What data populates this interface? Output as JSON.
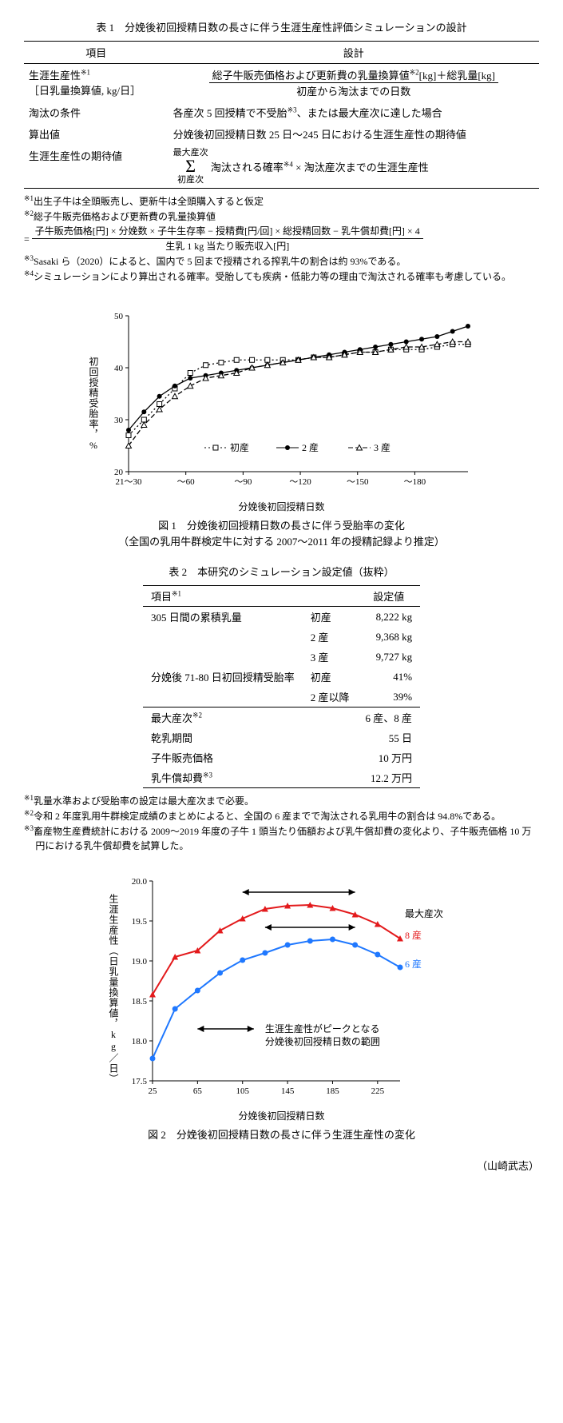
{
  "table1": {
    "title": "表 1　分娩後初回授精日数の長さに伴う生涯生産性評価シミュレーションの設計",
    "header": {
      "col1": "項目",
      "col2": "設計"
    },
    "rows": [
      {
        "item": "生涯生産性",
        "item_sup": "※1",
        "item_sub": "［日乳量換算値, kg/日］",
        "frac_num_a": "総子牛販売価格および更新費の乳量換算値",
        "frac_num_sup": "※2",
        "frac_num_b": "[kg]＋総乳量[kg]",
        "frac_den": "初産から淘汰までの日数"
      },
      {
        "item": "淘汰の条件",
        "design": "各産次 5 回授精で不受胎※3、または最大産次に達した場合",
        "design_text_a": "各産次 5 回授精で不受胎",
        "design_sup": "※3",
        "design_text_b": "、または最大産次に達した場合"
      },
      {
        "item": "算出値",
        "design": "分娩後初回授精日数 25 日～245 日における生涯生産性の期待値"
      },
      {
        "item": "生涯生産性の期待値",
        "sigma_top": "最大産次",
        "sigma_bot": "初産次",
        "sigma_right_a": "淘汰される確率",
        "sigma_sup": "※4",
        "sigma_right_b": " × 淘汰産次までの生涯生産性"
      }
    ],
    "footnotes": [
      {
        "mark": "※1",
        "text": "出生子牛は全頭販売し、更新牛は全頭購入すると仮定"
      },
      {
        "mark": "※2",
        "text": "総子牛販売価格および更新費の乳量換算値"
      },
      {
        "eq_num": "子牛販売価格[円] × 分娩数 × 子牛生存率 − 授精費[円/回] × 総授精回数 − 乳牛償却費[円] × 4",
        "eq_den": "生乳 1 kg 当たり販売収入[円]"
      },
      {
        "mark": "※3",
        "text": "Sasaki ら（2020）によると、国内で 5 回まで授精される搾乳牛の割合は約 93%である。"
      },
      {
        "mark": "※4",
        "text": "シミュレーションにより算出される確率。受胎しても疾病・低能力等の理由で淘汰される確率も考慮している。"
      }
    ]
  },
  "figure1": {
    "caption_line1": "図 1　分娩後初回授精日数の長さに伴う受胎率の変化",
    "caption_line2": "（全国の乳用牛群検定牛に対する 2007～2011 年の授精記録より推定）",
    "ylabel": "初回授精受胎率，%",
    "xlabel": "分娩後初回授精日数",
    "ylim": [
      20,
      50
    ],
    "ytick_step": 10,
    "xticks": [
      "21～30",
      "～60",
      "～90",
      "～120",
      "～150",
      "～180"
    ],
    "xpix": [
      40,
      110,
      180,
      250,
      320,
      390,
      455
    ],
    "legend": [
      {
        "label": "初産",
        "style": "open-square-dotted"
      },
      {
        "label": "2 産",
        "style": "filled-circle-solid"
      },
      {
        "label": "3 産",
        "style": "open-triangle-dash"
      }
    ],
    "series": {
      "parity1": [
        27,
        30,
        33,
        36,
        39,
        40.5,
        41,
        41.5,
        41.5,
        41.5,
        41.5,
        41.5,
        42,
        42,
        42.5,
        43,
        43,
        43.5,
        43.5,
        43.5,
        44,
        44.5,
        44.5
      ],
      "parity2": [
        28,
        31.5,
        34.5,
        36.5,
        38,
        38.5,
        39,
        39.5,
        40,
        40.5,
        41,
        41.5,
        42,
        42.5,
        43,
        43.5,
        44,
        44.5,
        45,
        45.5,
        46,
        47,
        48
      ],
      "parity3": [
        25,
        29,
        32,
        34.5,
        36.5,
        38,
        38.5,
        39,
        40,
        40.5,
        41,
        41.5,
        42,
        42,
        42.5,
        43,
        43,
        43.5,
        44,
        44,
        44.5,
        45,
        45
      ]
    },
    "colors": {
      "marker": "#000000",
      "axis": "#000000",
      "grid": "none",
      "background": "#ffffff"
    },
    "font_size": 12
  },
  "table2": {
    "title": "表 2　本研究のシミュレーション設定値（抜粋）",
    "header": {
      "c1": "項目",
      "c1_sup": "※1",
      "c3": "設定値"
    },
    "rows": [
      {
        "item": "305 日間の累積乳量",
        "mid": "初産",
        "val": "8,222 kg"
      },
      {
        "item": "",
        "mid": "2 産",
        "val": "9,368 kg"
      },
      {
        "item": "",
        "mid": "3 産",
        "val": "9,727 kg"
      },
      {
        "item": "分娩後 71-80 日初回授精受胎率",
        "mid": "初産",
        "val": "41%"
      },
      {
        "item": "",
        "mid": "2 産以降",
        "val": "39%"
      }
    ],
    "rows2": [
      {
        "item": "最大産次",
        "item_sup": "※2",
        "val": "6 産、8 産"
      },
      {
        "item": "乾乳期間",
        "val": "55 日"
      },
      {
        "item": "子牛販売価格",
        "val": "10 万円"
      },
      {
        "item": "乳牛償却費",
        "item_sup": "※3",
        "val": "12.2 万円"
      }
    ],
    "footnotes": [
      {
        "mark": "※1",
        "text": "乳量水準および受胎率の設定は最大産次まで必要。"
      },
      {
        "mark": "※2",
        "text": "令和 2 年度乳用牛群検定成績のまとめによると、全国の 6 産までで淘汰される乳用牛の割合は 94.8%である。"
      },
      {
        "mark": "※3",
        "text": "畜産物生産費統計における 2009～2019 年度の子牛 1 頭当たり価額および乳牛償却費の変化より、子牛販売価格 10 万円における乳牛償却費を試算した。"
      }
    ]
  },
  "figure2": {
    "caption": "図 2　分娩後初回授精日数の長さに伴う生涯生産性の変化",
    "ylabel": "生涯生産性（日乳量換算値，kg／日）",
    "xlabel": "分娩後初回授精日数",
    "ylim": [
      17.5,
      20.0
    ],
    "ytick_step": 0.5,
    "xlim": [
      25,
      245
    ],
    "xticks": [
      25,
      65,
      105,
      145,
      185,
      225
    ],
    "legend_title": "最大産次",
    "legend": [
      {
        "label": "8 産",
        "color": "#e31a1c"
      },
      {
        "label": "6 産",
        "color": "#1f78ff"
      }
    ],
    "series": {
      "max8": {
        "x": [
          25,
          45,
          65,
          85,
          105,
          125,
          145,
          165,
          185,
          205,
          225,
          245
        ],
        "y": [
          18.58,
          19.05,
          19.13,
          19.38,
          19.53,
          19.65,
          19.69,
          19.7,
          19.66,
          19.58,
          19.46,
          19.28
        ],
        "color": "#e31a1c",
        "marker": "triangle"
      },
      "max6": {
        "x": [
          25,
          45,
          65,
          85,
          105,
          125,
          145,
          165,
          185,
          205,
          225,
          245
        ],
        "y": [
          17.78,
          18.4,
          18.63,
          18.85,
          19.01,
          19.1,
          19.2,
          19.25,
          19.27,
          19.2,
          19.08,
          18.92
        ],
        "color": "#1f78ff",
        "marker": "circle"
      }
    },
    "annotation": {
      "arrow_label_line1": "生涯生産性がピークとなる",
      "arrow_label_line2": "分娩後初回授精日数の範囲",
      "range8": [
        105,
        205
      ],
      "range6": [
        125,
        205
      ]
    },
    "styling": {
      "background": "#ffffff",
      "axis": "#000000",
      "line_width": 2,
      "marker_size": 5,
      "font_size": 12
    }
  },
  "author": "（山崎武志）"
}
